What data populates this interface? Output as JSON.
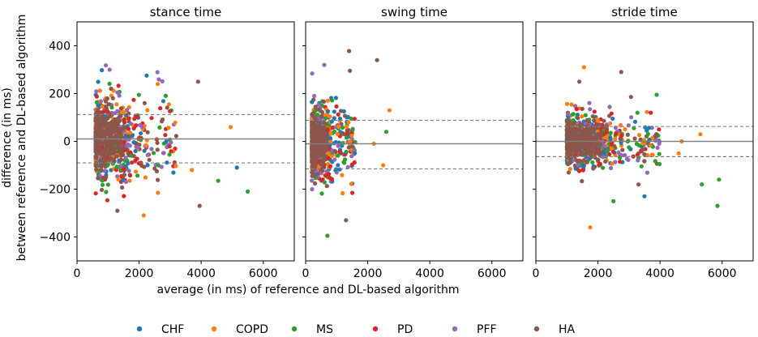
{
  "chart_data": {
    "type": "scatter",
    "figure": {
      "xlabel": "average (in ms) of reference and DL-based algorithm",
      "ylabel_lines": [
        "difference (in ms)",
        "between reference and DL-based algorithm"
      ],
      "shared_y": true,
      "xlim": [
        0,
        7000
      ],
      "ylim": [
        -500,
        500
      ],
      "xticks": [
        0,
        2000,
        4000,
        6000
      ],
      "yticks": [
        -400,
        -200,
        0,
        200,
        400
      ]
    },
    "legend": {
      "placement": "bottom-center",
      "entries": [
        {
          "name": "CHF",
          "color": "#1f77b4"
        },
        {
          "name": "COPD",
          "color": "#ff7f0e"
        },
        {
          "name": "MS",
          "color": "#2ca02c"
        },
        {
          "name": "PD",
          "color": "#d62728"
        },
        {
          "name": "PFF",
          "color": "#9467bd"
        },
        {
          "name": "HA",
          "color": "#8c564b"
        }
      ]
    },
    "panels": [
      {
        "title": "stance time",
        "mean_line": 10,
        "loa_upper": 112,
        "loa_lower": -90,
        "cluster": {
          "x_range": [
            500,
            3200
          ],
          "core_x": [
            600,
            1700
          ],
          "y_spread": 110
        },
        "outliers": [
          {
            "x": 930,
            "y": 318,
            "group": "PFF"
          },
          {
            "x": 1050,
            "y": 300,
            "group": "PFF"
          },
          {
            "x": 2600,
            "y": 240,
            "group": "COPD"
          },
          {
            "x": 3900,
            "y": 250,
            "group": "HA"
          },
          {
            "x": 4950,
            "y": 60,
            "group": "COPD"
          },
          {
            "x": 5150,
            "y": -110,
            "group": "CHF"
          },
          {
            "x": 4550,
            "y": -165,
            "group": "MS"
          },
          {
            "x": 5500,
            "y": -210,
            "group": "MS"
          },
          {
            "x": 3950,
            "y": -270,
            "group": "HA"
          },
          {
            "x": 2150,
            "y": -310,
            "group": "COPD"
          },
          {
            "x": 1300,
            "y": -290,
            "group": "HA"
          },
          {
            "x": 3700,
            "y": -120,
            "group": "COPD"
          }
        ]
      },
      {
        "title": "swing time",
        "mean_line": -10,
        "loa_upper": 88,
        "loa_lower": -115,
        "cluster": {
          "x_range": [
            150,
            1600
          ],
          "core_x": [
            200,
            800
          ],
          "y_spread": 100
        },
        "outliers": [
          {
            "x": 1400,
            "y": 378,
            "group": "HA"
          },
          {
            "x": 2300,
            "y": 340,
            "group": "HA"
          },
          {
            "x": 2700,
            "y": 130,
            "group": "COPD"
          },
          {
            "x": 2600,
            "y": 40,
            "group": "MS"
          },
          {
            "x": 2200,
            "y": -10,
            "group": "COPD"
          },
          {
            "x": 2500,
            "y": -100,
            "group": "COPD"
          },
          {
            "x": 700,
            "y": -395,
            "group": "MS"
          },
          {
            "x": 1300,
            "y": -330,
            "group": "HA"
          },
          {
            "x": 600,
            "y": 320,
            "group": "PFF"
          }
        ]
      },
      {
        "title": "stride time",
        "mean_line": 0,
        "loa_upper": 62,
        "loa_lower": -64,
        "cluster": {
          "x_range": [
            800,
            4000
          ],
          "core_x": [
            1000,
            2400
          ],
          "y_spread": 75
        },
        "outliers": [
          {
            "x": 1550,
            "y": 310,
            "group": "COPD"
          },
          {
            "x": 2750,
            "y": 290,
            "group": "HA"
          },
          {
            "x": 1400,
            "y": 250,
            "group": "HA"
          },
          {
            "x": 5300,
            "y": 30,
            "group": "COPD"
          },
          {
            "x": 4700,
            "y": 0,
            "group": "COPD"
          },
          {
            "x": 4600,
            "y": -50,
            "group": "COPD"
          },
          {
            "x": 5900,
            "y": -160,
            "group": "MS"
          },
          {
            "x": 5350,
            "y": -180,
            "group": "MS"
          },
          {
            "x": 5850,
            "y": -270,
            "group": "MS"
          },
          {
            "x": 3500,
            "y": -230,
            "group": "CHF"
          },
          {
            "x": 1750,
            "y": -360,
            "group": "COPD"
          },
          {
            "x": 2500,
            "y": -250,
            "group": "MS"
          }
        ]
      }
    ]
  }
}
